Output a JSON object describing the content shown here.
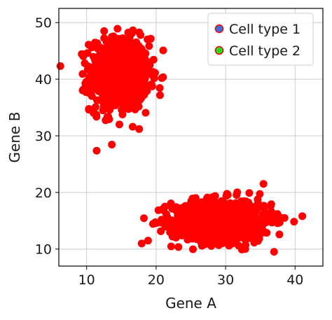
{
  "chart_data": {
    "type": "scatter",
    "title": "",
    "xlabel": "Gene A",
    "ylabel": "Gene B",
    "xlim": [
      6,
      44
    ],
    "ylim": [
      7,
      52.5
    ],
    "xticks": [
      10,
      20,
      30,
      40
    ],
    "yticks": [
      10,
      20,
      30,
      40,
      50
    ],
    "grid": true,
    "legend_position": "top-right",
    "series": [
      {
        "name": "Cell type 1",
        "legend_face": "#3b6fd8",
        "legend_edge": "#ff0000",
        "cluster_center": [
          14.7,
          40.8
        ],
        "cluster_spread": [
          2.1,
          3.2
        ],
        "count": 800,
        "color": "#ff0000"
      },
      {
        "name": "Cell type 2",
        "legend_face": "#22dd22",
        "legend_edge": "#ff0000",
        "cluster_center": [
          29.5,
          15.0
        ],
        "cluster_spread": [
          3.6,
          1.9
        ],
        "count": 800,
        "color": "#ff0000"
      }
    ]
  }
}
